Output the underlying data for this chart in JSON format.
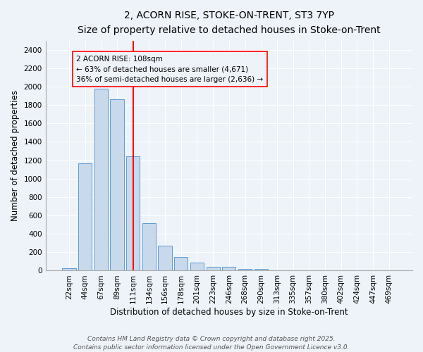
{
  "title_line1": "2, ACORN RISE, STOKE-ON-TRENT, ST3 7YP",
  "title_line2": "Size of property relative to detached houses in Stoke-on-Trent",
  "xlabel": "Distribution of detached houses by size in Stoke-on-Trent",
  "ylabel": "Number of detached properties",
  "bin_labels": [
    "22sqm",
    "44sqm",
    "67sqm",
    "89sqm",
    "111sqm",
    "134sqm",
    "156sqm",
    "178sqm",
    "201sqm",
    "223sqm",
    "246sqm",
    "268sqm",
    "290sqm",
    "313sqm",
    "335sqm",
    "357sqm",
    "380sqm",
    "402sqm",
    "424sqm",
    "447sqm",
    "469sqm"
  ],
  "bar_heights": [
    25,
    1170,
    1980,
    1860,
    1240,
    515,
    275,
    150,
    90,
    45,
    45,
    20,
    15,
    5,
    5,
    3,
    3,
    2,
    2,
    2,
    2
  ],
  "bar_color": "#c9d9ec",
  "bar_edge_color": "#5b9bd5",
  "bar_width": 0.85,
  "vline_x": 4.0,
  "vline_color": "red",
  "annotation_text": "2 ACORN RISE: 108sqm\n← 63% of detached houses are smaller (4,671)\n36% of semi-detached houses are larger (2,636) →",
  "annotation_box_color": "red",
  "annotation_bg_color": "#eef3f9",
  "ylim": [
    0,
    2500
  ],
  "yticks": [
    0,
    200,
    400,
    600,
    800,
    1000,
    1200,
    1400,
    1600,
    1800,
    2000,
    2200,
    2400
  ],
  "background_color": "#eef3f9",
  "grid_color": "white",
  "footer_line1": "Contains HM Land Registry data © Crown copyright and database right 2025.",
  "footer_line2": "Contains public sector information licensed under the Open Government Licence v3.0.",
  "title_fontsize": 10,
  "subtitle_fontsize": 9,
  "axis_label_fontsize": 8.5,
  "tick_fontsize": 7.5,
  "annotation_fontsize": 7.5,
  "footer_fontsize": 6.5
}
